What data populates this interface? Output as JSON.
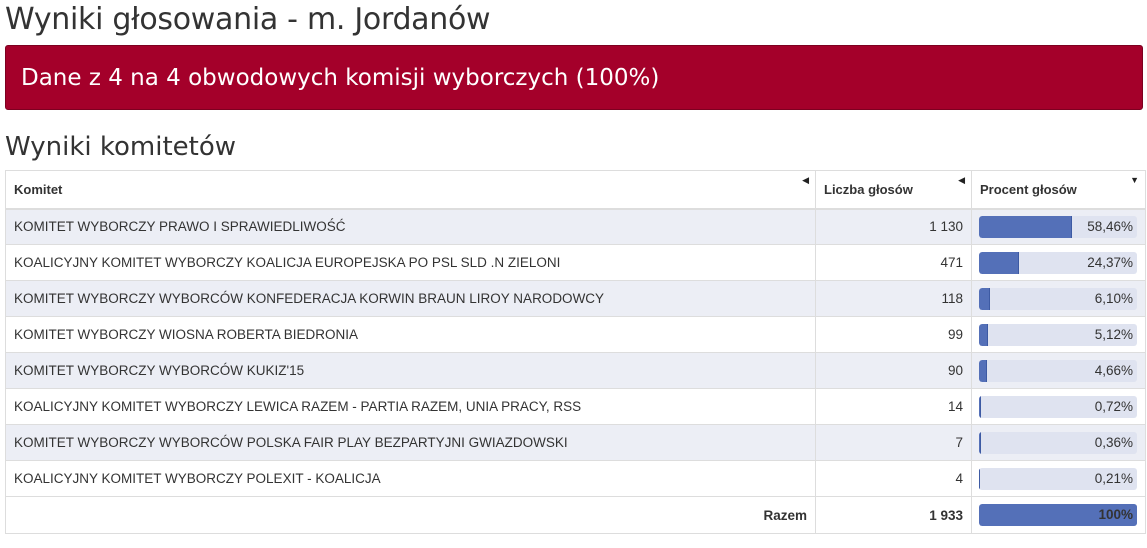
{
  "page": {
    "title": "Wyniki głosowania - m. Jordanów",
    "banner": "Dane z 4 na 4 obwodowych komisji wyborczych (100%)",
    "section_title": "Wyniki komitetów"
  },
  "table": {
    "headers": {
      "committee": "Komitet",
      "votes": "Liczba głosów",
      "percent": "Procent głosów"
    },
    "rows": [
      {
        "name": "KOMITET WYBORCZY PRAWO I SPRAWIEDLIWOŚĆ",
        "votes": "1 130",
        "percent_label": "58,46%",
        "percent": 58.46
      },
      {
        "name": "KOALICYJNY KOMITET WYBORCZY KOALICJA EUROPEJSKA PO PSL SLD .N ZIELONI",
        "votes": "471",
        "percent_label": "24,37%",
        "percent": 24.37
      },
      {
        "name": "KOMITET WYBORCZY WYBORCÓW KONFEDERACJA KORWIN BRAUN LIROY NARODOWCY",
        "votes": "118",
        "percent_label": "6,10%",
        "percent": 6.1
      },
      {
        "name": "KOMITET WYBORCZY WIOSNA ROBERTA BIEDRONIA",
        "votes": "99",
        "percent_label": "5,12%",
        "percent": 5.12
      },
      {
        "name": "KOMITET WYBORCZY WYBORCÓW KUKIZ'15",
        "votes": "90",
        "percent_label": "4,66%",
        "percent": 4.66
      },
      {
        "name": "KOALICYJNY KOMITET WYBORCZY LEWICA RAZEM - PARTIA RAZEM, UNIA PRACY, RSS",
        "votes": "14",
        "percent_label": "0,72%",
        "percent": 0.72
      },
      {
        "name": "KOMITET WYBORCZY WYBORCÓW POLSKA FAIR PLAY BEZPARTYJNI GWIAZDOWSKI",
        "votes": "7",
        "percent_label": "0,36%",
        "percent": 0.36
      },
      {
        "name": "KOALICYJNY KOMITET WYBORCZY POLEXIT - KOALICJA",
        "votes": "4",
        "percent_label": "0,21%",
        "percent": 0.21
      }
    ],
    "total": {
      "label": "Razem",
      "votes": "1 933",
      "percent_label": "100%",
      "percent": 100
    }
  },
  "colors": {
    "banner": "#a4002a",
    "bar_fill": "#5470b8",
    "bar_track": "#dfe3f0",
    "row_stripe": "#eceef5"
  }
}
